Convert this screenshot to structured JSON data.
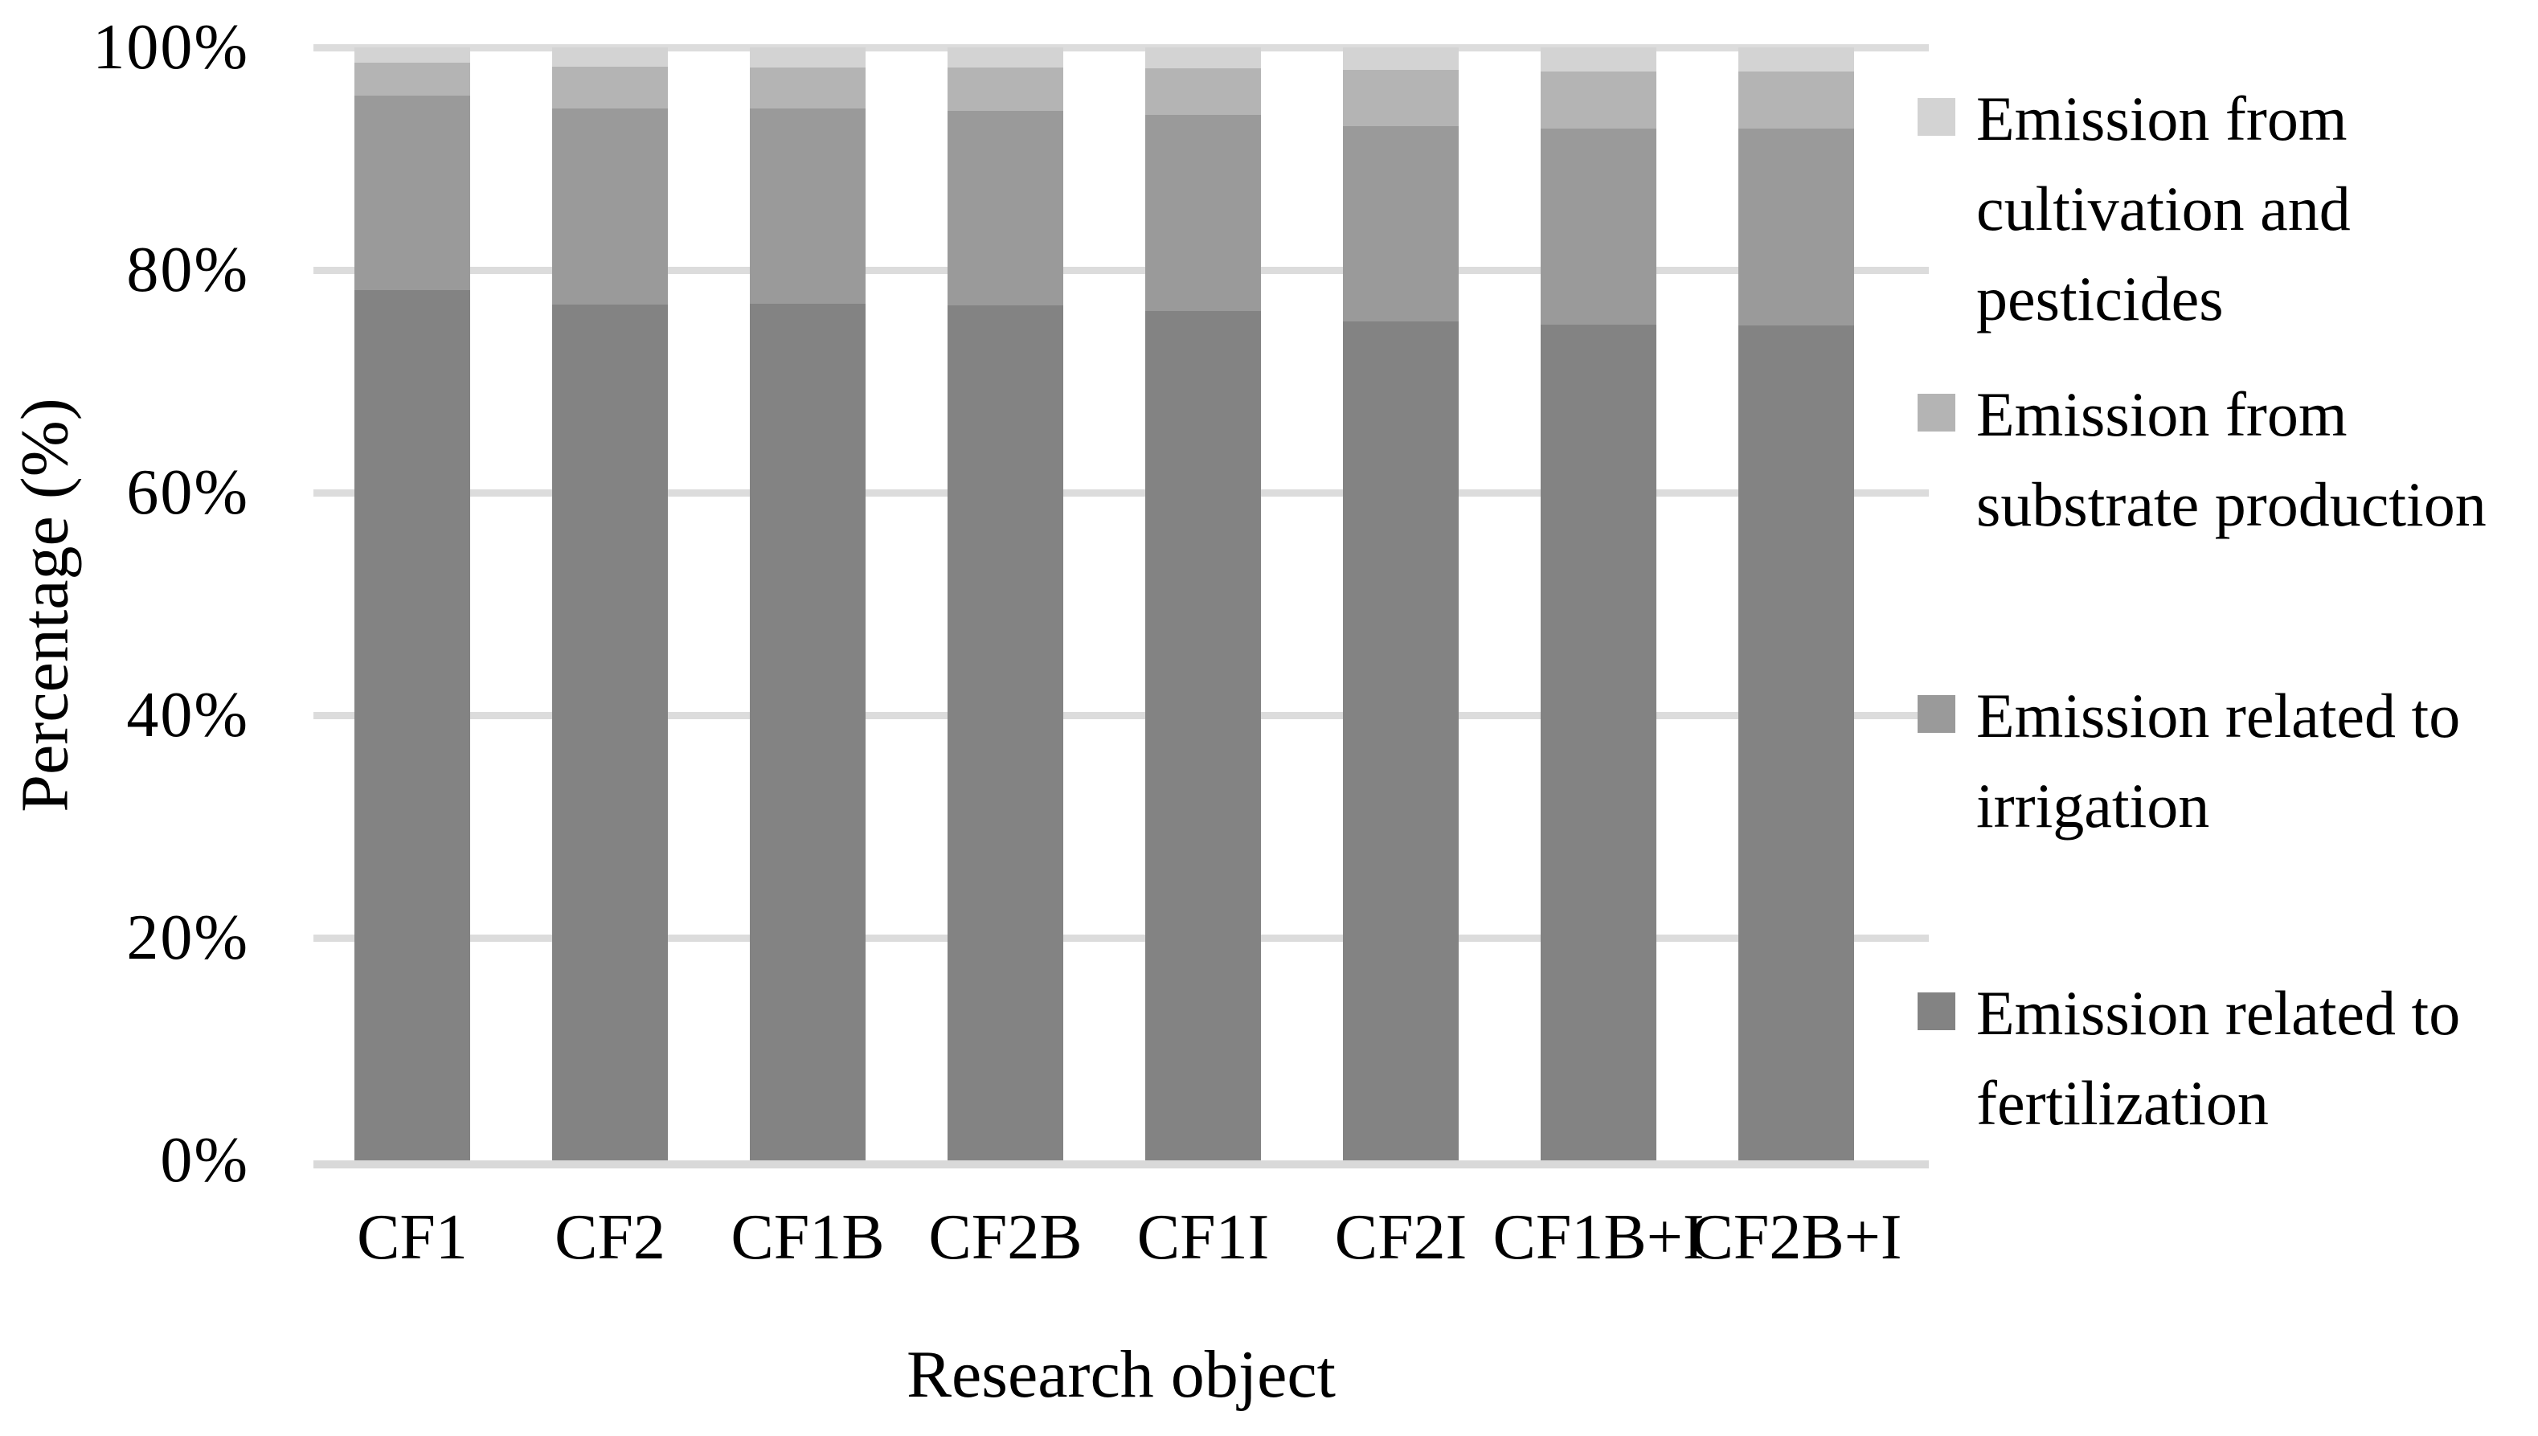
{
  "colors": {
    "gridline": "#dcdcdc",
    "baseline": "#d9d9d9",
    "text": "#000000",
    "background": "#ffffff"
  },
  "chart_data": {
    "type": "bar",
    "subtype": "stacked-100-percent",
    "title": "",
    "xlabel": "Research object",
    "ylabel": "Percentage (%)",
    "ylim": [
      0,
      100
    ],
    "grid": true,
    "legend_position": "right",
    "categories": [
      "CF1",
      "CF2",
      "CF1B",
      "CF2B",
      "CF1I",
      "CF2I",
      "CF1B+I",
      "CF2B+I"
    ],
    "yticks": [
      {
        "value": 0,
        "label": "0%"
      },
      {
        "value": 20,
        "label": "20%"
      },
      {
        "value": 40,
        "label": "40%"
      },
      {
        "value": 60,
        "label": "60%"
      },
      {
        "value": 80,
        "label": "80%"
      },
      {
        "value": 100,
        "label": "100%"
      }
    ],
    "series": [
      {
        "name": "Emission related to fertilization",
        "color": "#838383",
        "values": [
          78.2,
          76.9,
          77.0,
          76.8,
          76.3,
          75.4,
          75.1,
          75.0
        ]
      },
      {
        "name": "Emission related to irrigation",
        "color": "#9a9a9a",
        "values": [
          17.5,
          17.6,
          17.5,
          17.5,
          17.6,
          17.5,
          17.6,
          17.7
        ]
      },
      {
        "name": "Emission from substrate production",
        "color": "#b4b4b4",
        "values": [
          2.9,
          3.8,
          3.7,
          3.9,
          4.2,
          5.1,
          5.1,
          5.1
        ]
      },
      {
        "name": "Emission from cultivation and pesticides",
        "color": "#d3d3d3",
        "values": [
          1.4,
          1.7,
          1.8,
          1.8,
          1.9,
          2.0,
          2.2,
          2.2
        ]
      }
    ],
    "legend": [
      {
        "label": "Emission from cultivation and pesticides",
        "color": "#d3d3d3"
      },
      {
        "label": "Emission from substrate production",
        "color": "#b4b4b4"
      },
      {
        "label": "Emission related to irrigation",
        "color": "#9a9a9a"
      },
      {
        "label": "Emission related to fertilization",
        "color": "#838383"
      }
    ]
  }
}
